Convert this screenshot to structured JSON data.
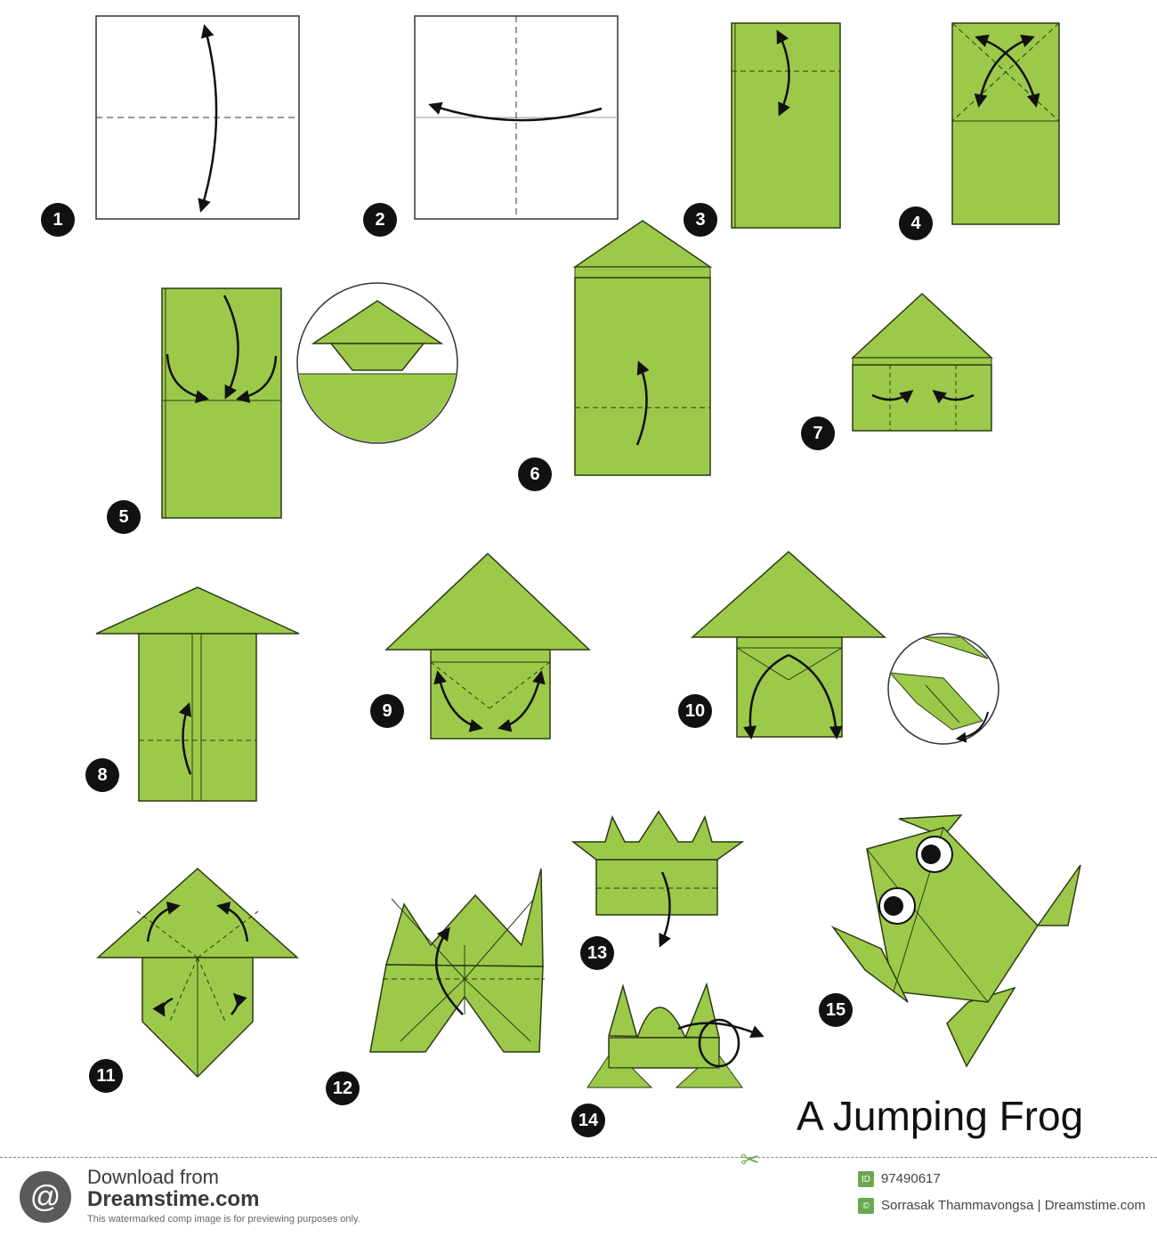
{
  "title": "A Jumping Frog",
  "steps": [
    "1",
    "2",
    "3",
    "4",
    "5",
    "6",
    "7",
    "8",
    "9",
    "10",
    "11",
    "12",
    "13",
    "14",
    "15"
  ],
  "colors": {
    "paper": "#9dc94a",
    "edge": "#2b3a12",
    "badge": "#111111",
    "watermark": "#6aa84f"
  },
  "footer": {
    "download_label": "Download from",
    "site": "Dreamstime.com",
    "note": "This watermarked comp image is for previewing purposes only.",
    "image_id": "97490617",
    "author": "Sorrasak Thammavongsa | Dreamstime.com",
    "logo_icon": "spiral-logo-icon",
    "scissors_icon": "scissors-icon"
  }
}
